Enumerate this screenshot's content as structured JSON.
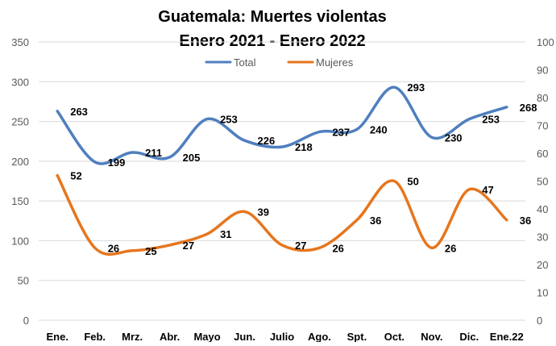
{
  "chart_data": {
    "type": "line",
    "title_line1": "Guatemala: Muertes violentas",
    "title_line2": "Enero 2021 - Enero 2022",
    "categories": [
      "Ene.",
      "Feb.",
      "Mrz.",
      "Abr.",
      "Mayo",
      "Jun.",
      "Julio",
      "Ago.",
      "Spt.",
      "Oct.",
      "Nov.",
      "Dic.",
      "Ene.22"
    ],
    "series": [
      {
        "name": "Total",
        "axis": "left",
        "color": "#4f7fbf",
        "values": [
          263,
          199,
          211,
          205,
          253,
          226,
          218,
          237,
          240,
          293,
          230,
          253,
          268
        ]
      },
      {
        "name": "Mujeres",
        "axis": "right",
        "color": "#e6761e",
        "values": [
          52,
          26,
          25,
          27,
          31,
          39,
          27,
          26,
          36,
          50,
          26,
          47,
          36
        ]
      }
    ],
    "y_left": {
      "min": 0,
      "max": 350,
      "ticks": [
        0,
        50,
        100,
        150,
        200,
        250,
        300,
        350
      ]
    },
    "y_right": {
      "min": 0,
      "max": 100,
      "ticks": [
        0,
        10,
        20,
        30,
        40,
        50,
        60,
        70,
        80,
        90,
        100
      ]
    },
    "grid": true,
    "legend_position": "top-center"
  }
}
